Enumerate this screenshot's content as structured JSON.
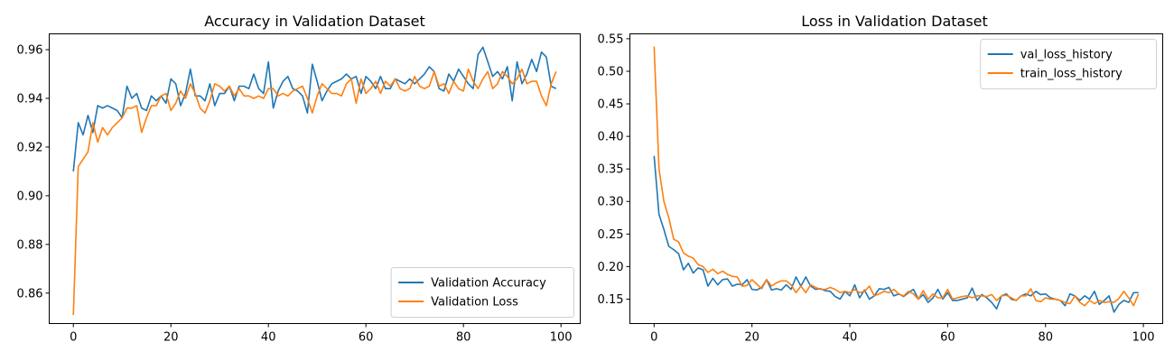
{
  "colors": {
    "blue": "#1f77b4",
    "orange": "#ff7f0e"
  },
  "chart_data": [
    {
      "type": "line",
      "title": "Accuracy in Validation Dataset",
      "xlabel": "",
      "ylabel": "",
      "xlim": [
        -4.95,
        103.95
      ],
      "ylim": [
        0.8475,
        0.9665
      ],
      "xticks": [
        0,
        20,
        40,
        60,
        80,
        100
      ],
      "yticks": [
        0.86,
        0.88,
        0.9,
        0.92,
        0.94,
        0.96
      ],
      "ytick_labels": [
        "0.86",
        "0.88",
        "0.90",
        "0.92",
        "0.94",
        "0.96"
      ],
      "legend_position": "lower-right",
      "grid": false,
      "x_start": 0,
      "series": [
        {
          "name": "Validation Accuracy",
          "color": "#1f77b4",
          "values": [
            0.91,
            0.93,
            0.925,
            0.933,
            0.926,
            0.937,
            0.936,
            0.937,
            0.936,
            0.935,
            0.932,
            0.945,
            0.94,
            0.942,
            0.936,
            0.935,
            0.941,
            0.939,
            0.941,
            0.938,
            0.948,
            0.946,
            0.937,
            0.942,
            0.952,
            0.941,
            0.941,
            0.939,
            0.946,
            0.937,
            0.942,
            0.942,
            0.945,
            0.939,
            0.945,
            0.945,
            0.944,
            0.95,
            0.944,
            0.942,
            0.955,
            0.936,
            0.943,
            0.947,
            0.949,
            0.944,
            0.943,
            0.941,
            0.934,
            0.954,
            0.947,
            0.939,
            0.943,
            0.946,
            0.947,
            0.948,
            0.95,
            0.948,
            0.949,
            0.942,
            0.949,
            0.947,
            0.944,
            0.949,
            0.944,
            0.944,
            0.948,
            0.947,
            0.946,
            0.948,
            0.946,
            0.948,
            0.95,
            0.953,
            0.951,
            0.944,
            0.943,
            0.95,
            0.947,
            0.952,
            0.949,
            0.946,
            0.944,
            0.958,
            0.961,
            0.955,
            0.949,
            0.951,
            0.948,
            0.953,
            0.939,
            0.955,
            0.946,
            0.95,
            0.956,
            0.951,
            0.959,
            0.957,
            0.945,
            0.944
          ]
        },
        {
          "name": "Validation Loss",
          "color": "#ff7f0e",
          "values": [
            0.851,
            0.912,
            0.915,
            0.918,
            0.93,
            0.922,
            0.928,
            0.925,
            0.928,
            0.93,
            0.932,
            0.936,
            0.936,
            0.937,
            0.926,
            0.932,
            0.937,
            0.937,
            0.941,
            0.942,
            0.935,
            0.938,
            0.943,
            0.94,
            0.946,
            0.942,
            0.936,
            0.934,
            0.939,
            0.946,
            0.945,
            0.943,
            0.945,
            0.941,
            0.944,
            0.941,
            0.941,
            0.94,
            0.941,
            0.94,
            0.944,
            0.944,
            0.941,
            0.942,
            0.941,
            0.943,
            0.944,
            0.945,
            0.94,
            0.934,
            0.941,
            0.946,
            0.944,
            0.942,
            0.942,
            0.941,
            0.946,
            0.948,
            0.938,
            0.948,
            0.942,
            0.944,
            0.947,
            0.942,
            0.947,
            0.945,
            0.948,
            0.944,
            0.943,
            0.944,
            0.949,
            0.945,
            0.944,
            0.945,
            0.951,
            0.945,
            0.946,
            0.942,
            0.947,
            0.944,
            0.943,
            0.952,
            0.947,
            0.944,
            0.948,
            0.951,
            0.944,
            0.946,
            0.951,
            0.949,
            0.946,
            0.948,
            0.952,
            0.946,
            0.947,
            0.947,
            0.941,
            0.937,
            0.946,
            0.951
          ]
        }
      ]
    },
    {
      "type": "line",
      "title": "Loss in Validation Dataset",
      "xlabel": "",
      "ylabel": "",
      "xlim": [
        -4.95,
        103.95
      ],
      "ylim": [
        0.1125,
        0.5575
      ],
      "xticks": [
        0,
        20,
        40,
        60,
        80,
        100
      ],
      "yticks": [
        0.15,
        0.2,
        0.25,
        0.3,
        0.35,
        0.4,
        0.45,
        0.5,
        0.55
      ],
      "ytick_labels": [
        "0.15",
        "0.20",
        "0.25",
        "0.30",
        "0.35",
        "0.40",
        "0.45",
        "0.50",
        "0.55"
      ],
      "legend_position": "upper-right",
      "grid": false,
      "x_start": 0,
      "series": [
        {
          "name": "val_loss_history",
          "color": "#1f77b4",
          "values": [
            0.37,
            0.28,
            0.257,
            0.231,
            0.226,
            0.22,
            0.195,
            0.205,
            0.19,
            0.198,
            0.195,
            0.17,
            0.182,
            0.172,
            0.18,
            0.181,
            0.17,
            0.173,
            0.172,
            0.18,
            0.165,
            0.164,
            0.168,
            0.18,
            0.164,
            0.166,
            0.164,
            0.172,
            0.165,
            0.184,
            0.17,
            0.184,
            0.17,
            0.165,
            0.166,
            0.163,
            0.162,
            0.154,
            0.15,
            0.162,
            0.155,
            0.172,
            0.152,
            0.164,
            0.15,
            0.155,
            0.166,
            0.165,
            0.168,
            0.155,
            0.158,
            0.154,
            0.16,
            0.165,
            0.15,
            0.157,
            0.145,
            0.152,
            0.165,
            0.15,
            0.16,
            0.148,
            0.148,
            0.15,
            0.152,
            0.167,
            0.148,
            0.157,
            0.152,
            0.145,
            0.135,
            0.155,
            0.158,
            0.15,
            0.148,
            0.155,
            0.158,
            0.155,
            0.162,
            0.157,
            0.158,
            0.152,
            0.15,
            0.148,
            0.14,
            0.158,
            0.155,
            0.148,
            0.155,
            0.15,
            0.162,
            0.142,
            0.148,
            0.155,
            0.13,
            0.142,
            0.148,
            0.145,
            0.16,
            0.16
          ]
        },
        {
          "name": "train_loss_history",
          "color": "#ff7f0e",
          "values": [
            0.538,
            0.35,
            0.3,
            0.275,
            0.242,
            0.238,
            0.221,
            0.216,
            0.213,
            0.203,
            0.2,
            0.191,
            0.196,
            0.189,
            0.193,
            0.188,
            0.185,
            0.184,
            0.17,
            0.171,
            0.18,
            0.173,
            0.166,
            0.18,
            0.17,
            0.175,
            0.178,
            0.178,
            0.172,
            0.16,
            0.17,
            0.16,
            0.172,
            0.168,
            0.165,
            0.165,
            0.168,
            0.165,
            0.16,
            0.162,
            0.16,
            0.165,
            0.16,
            0.162,
            0.17,
            0.155,
            0.158,
            0.162,
            0.16,
            0.165,
            0.158,
            0.155,
            0.162,
            0.158,
            0.15,
            0.163,
            0.15,
            0.158,
            0.152,
            0.152,
            0.165,
            0.15,
            0.152,
            0.154,
            0.155,
            0.152,
            0.155,
            0.155,
            0.154,
            0.157,
            0.148,
            0.155,
            0.156,
            0.152,
            0.148,
            0.155,
            0.155,
            0.166,
            0.148,
            0.146,
            0.152,
            0.15,
            0.15,
            0.148,
            0.145,
            0.143,
            0.155,
            0.145,
            0.14,
            0.148,
            0.143,
            0.148,
            0.145,
            0.146,
            0.145,
            0.151,
            0.162,
            0.152,
            0.14,
            0.158
          ]
        }
      ]
    }
  ]
}
